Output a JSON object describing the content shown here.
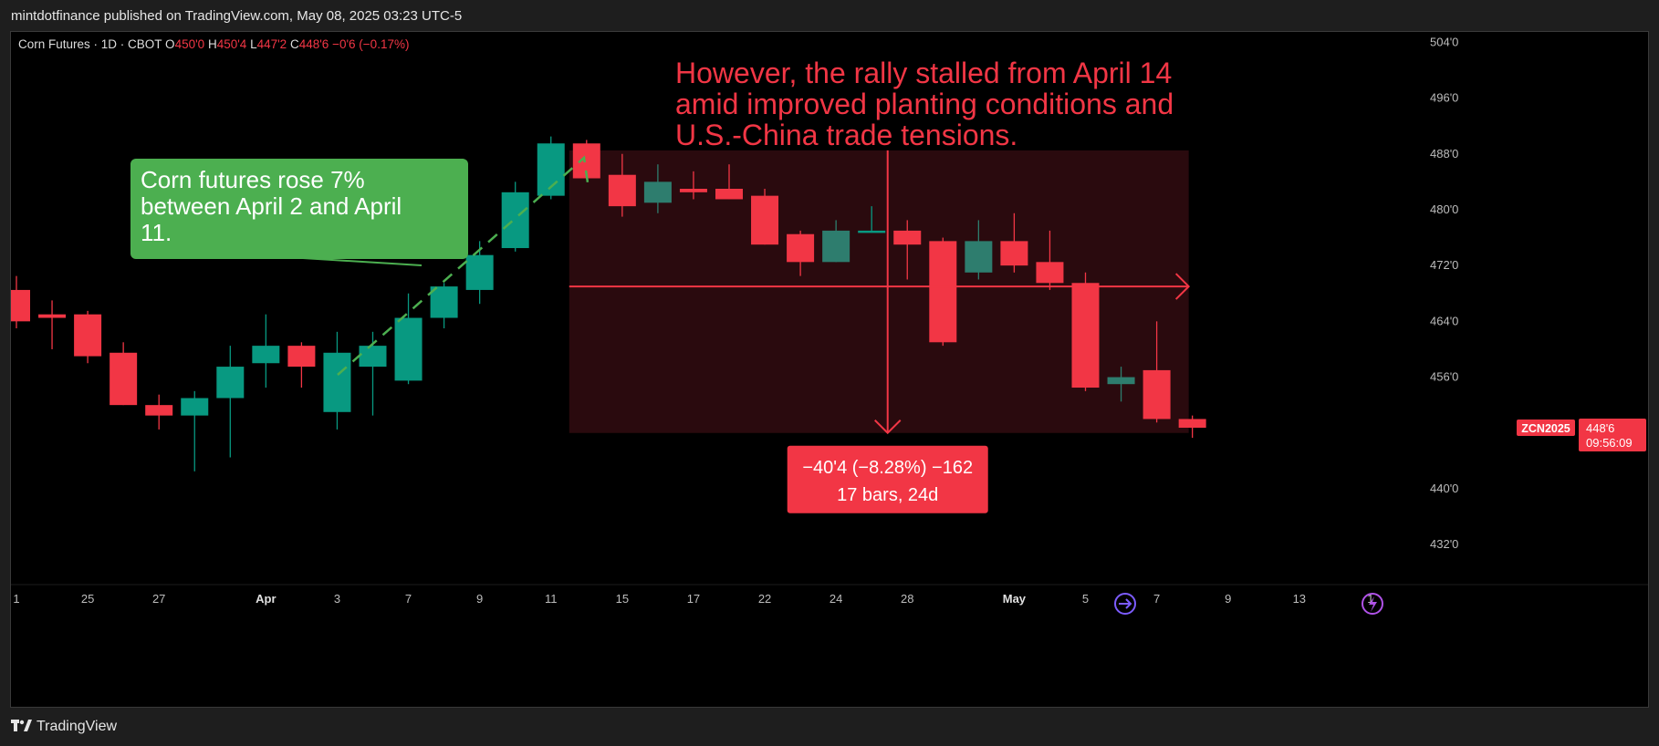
{
  "header": {
    "published_line": "mintdotfinance published on TradingView.com, May 08, 2025 03:23 UTC-5"
  },
  "footer": {
    "brand": "TradingView"
  },
  "colors": {
    "up": "#089981",
    "up_muted": "#2e7d6e",
    "down": "#f23645",
    "range_fill": "#2a0a0e",
    "green_note": "#4caf50",
    "axis_text": "#bdbdbd"
  },
  "icons": {
    "replay": "replay-arrow-icon",
    "alert": "lightning-bolt-icon",
    "logo": "tradingview-logo-icon"
  },
  "chart_data": {
    "type": "candlestick",
    "title": "",
    "legend": {
      "symbol": "Corn Futures · 1D · CBOT",
      "o_label": "O",
      "o_value": "450'0",
      "h_label": "H",
      "h_value": "450'4",
      "l_label": "L",
      "l_value": "447'2",
      "c_label": "C",
      "c_value": "448'6",
      "change": "−0'6 (−0.17%)"
    },
    "ylim": [
      425,
      505
    ],
    "y_ticks": [
      {
        "value": 504,
        "label": "504'0"
      },
      {
        "value": 496,
        "label": "496'0"
      },
      {
        "value": 488,
        "label": "488'0"
      },
      {
        "value": 480,
        "label": "480'0"
      },
      {
        "value": 472,
        "label": "472'0"
      },
      {
        "value": 464,
        "label": "464'0"
      },
      {
        "value": 456,
        "label": "456'0"
      },
      {
        "value": 440,
        "label": "440'0"
      },
      {
        "value": 432,
        "label": "432'0"
      }
    ],
    "x_ticks": [
      {
        "index": 0,
        "label": "1"
      },
      {
        "index": 2,
        "label": "25"
      },
      {
        "index": 4,
        "label": "27"
      },
      {
        "index": 7,
        "label": "Apr"
      },
      {
        "index": 9,
        "label": "3"
      },
      {
        "index": 11,
        "label": "7"
      },
      {
        "index": 13,
        "label": "9"
      },
      {
        "index": 15,
        "label": "11"
      },
      {
        "index": 17,
        "label": "15"
      },
      {
        "index": 19,
        "label": "17"
      },
      {
        "index": 21,
        "label": "22"
      },
      {
        "index": 23,
        "label": "24"
      },
      {
        "index": 25,
        "label": "28"
      },
      {
        "index": 28,
        "label": "May"
      },
      {
        "index": 30,
        "label": "5"
      },
      {
        "index": 32,
        "label": "7"
      },
      {
        "index": 34,
        "label": "9"
      },
      {
        "index": 36,
        "label": "13"
      },
      {
        "index": 38,
        "label": "1"
      }
    ],
    "candles": [
      {
        "o": 468.5,
        "h": 470.5,
        "l": 463.0,
        "c": 464.0
      },
      {
        "o": 465.0,
        "h": 467.0,
        "l": 460.0,
        "c": 464.5
      },
      {
        "o": 465.0,
        "h": 465.5,
        "l": 458.0,
        "c": 459.0
      },
      {
        "o": 459.5,
        "h": 461.0,
        "l": 452.0,
        "c": 452.0
      },
      {
        "o": 452.0,
        "h": 453.5,
        "l": 448.5,
        "c": 450.5
      },
      {
        "o": 450.5,
        "h": 454.0,
        "l": 442.5,
        "c": 453.0
      },
      {
        "o": 453.0,
        "h": 460.5,
        "l": 444.5,
        "c": 457.5
      },
      {
        "o": 458.0,
        "h": 465.0,
        "l": 454.5,
        "c": 460.5
      },
      {
        "o": 460.5,
        "h": 461.0,
        "l": 454.5,
        "c": 457.5
      },
      {
        "o": 451.0,
        "h": 462.5,
        "l": 448.5,
        "c": 459.5
      },
      {
        "o": 457.5,
        "h": 462.5,
        "l": 450.5,
        "c": 460.5
      },
      {
        "o": 455.5,
        "h": 468.0,
        "l": 455.0,
        "c": 464.5
      },
      {
        "o": 464.5,
        "h": 469.5,
        "l": 463.0,
        "c": 469.0
      },
      {
        "o": 468.5,
        "h": 475.5,
        "l": 466.5,
        "c": 473.5
      },
      {
        "o": 474.5,
        "h": 484.0,
        "l": 474.0,
        "c": 482.5
      },
      {
        "o": 482.0,
        "h": 490.5,
        "l": 481.5,
        "c": 489.5
      },
      {
        "o": 489.5,
        "h": 490.0,
        "l": 484.5,
        "c": 484.5
      },
      {
        "o": 485.0,
        "h": 488.0,
        "l": 479.0,
        "c": 480.5
      },
      {
        "o": 481.0,
        "h": 486.5,
        "l": 479.5,
        "c": 484.0
      },
      {
        "o": 483.0,
        "h": 485.5,
        "l": 481.5,
        "c": 482.5
      },
      {
        "o": 483.0,
        "h": 486.5,
        "l": 481.5,
        "c": 481.5
      },
      {
        "o": 482.0,
        "h": 483.0,
        "l": 475.0,
        "c": 475.0
      },
      {
        "o": 476.5,
        "h": 477.0,
        "l": 470.5,
        "c": 472.5
      },
      {
        "o": 472.5,
        "h": 478.5,
        "l": 472.5,
        "c": 477.0
      },
      {
        "o": 477.0,
        "h": 480.5,
        "l": 477.0,
        "c": 477.0
      },
      {
        "o": 477.0,
        "h": 478.5,
        "l": 470.0,
        "c": 475.0
      },
      {
        "o": 475.5,
        "h": 476.0,
        "l": 460.5,
        "c": 461.0
      },
      {
        "o": 471.0,
        "h": 478.5,
        "l": 470.0,
        "c": 475.5
      },
      {
        "o": 475.5,
        "h": 479.5,
        "l": 471.0,
        "c": 472.0
      },
      {
        "o": 472.5,
        "h": 477.0,
        "l": 468.5,
        "c": 469.5
      },
      {
        "o": 469.5,
        "h": 471.0,
        "l": 454.0,
        "c": 454.5
      },
      {
        "o": 455.0,
        "h": 457.5,
        "l": 452.5,
        "c": 456.0
      },
      {
        "o": 457.0,
        "h": 464.0,
        "l": 449.5,
        "c": 450.0
      },
      {
        "o": 450.0,
        "h": 450.5,
        "l": 447.3,
        "c": 448.75
      }
    ],
    "price_tag": {
      "symbol": "ZCN2025",
      "price": "448'6",
      "countdown": "09:56:09",
      "value": 448.75
    },
    "annotations": {
      "green_note": "Corn futures rose 7% between April 2 and April 11.",
      "red_note": "However, the rally stalled from April 14 amid improved planting conditions and U.S.-China trade tensions.",
      "range_line1": "−40'4 (−8.28%) −162",
      "range_line2": "17 bars, 24d",
      "range": {
        "start_index": 16,
        "end_index": 33,
        "top": 488.5,
        "bottom": 448.0,
        "mid": 469.0
      }
    }
  }
}
